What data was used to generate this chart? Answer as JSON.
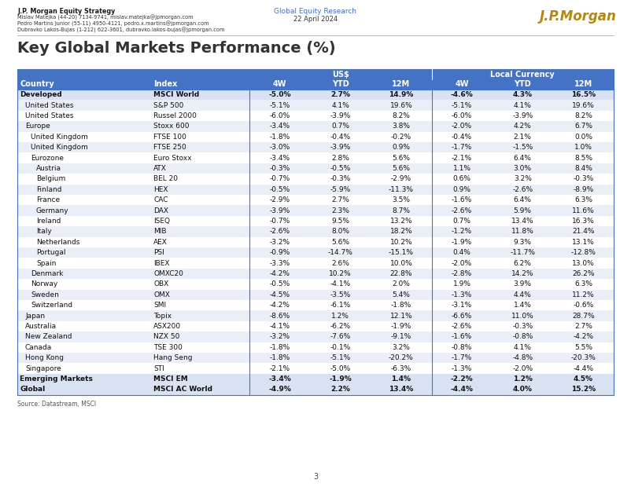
{
  "header_line1": "J.P. Morgan Equity Strategy",
  "header_line2": "Mislav Matejka (44-20) 7134-9741, mislav.matejka@jpmorgan.com",
  "header_line3": "Pedro Martins Junior (55-11) 4950-4121, pedro.x.martins@jpmorgan.com",
  "header_line4": "Dubravko Lakos-Bujas (1-212) 622-3601, dubravko.lakos-bujas@jpmorgan.com",
  "center_line1": "Global Equity Research",
  "center_line2": "22 April 2024",
  "title": "Key Global Markets Performance (%)",
  "page_number": "3",
  "source_text": "Source: Datastream, MSCI",
  "header_color": "#4472c4",
  "bold_row_bg": "#d9e2f3",
  "alt_row_color": "#e9eef7",
  "white_row_color": "#ffffff",
  "divider_color": "#4472c4",
  "columns": [
    "Country",
    "Index",
    "4W",
    "YTD",
    "12M",
    "4W",
    "YTD",
    "12M"
  ],
  "rows": [
    {
      "country": "Developed",
      "index": "MSCI World",
      "us_4w": "-5.0%",
      "us_ytd": "2.7%",
      "us_12m": "14.9%",
      "lc_4w": "-4.6%",
      "lc_ytd": "4.3%",
      "lc_12m": "16.5%",
      "bold": true,
      "indent": 0
    },
    {
      "country": "United States",
      "index": "S&P 500",
      "us_4w": "-5.1%",
      "us_ytd": "4.1%",
      "us_12m": "19.6%",
      "lc_4w": "-5.1%",
      "lc_ytd": "4.1%",
      "lc_12m": "19.6%",
      "bold": false,
      "indent": 1
    },
    {
      "country": "United States",
      "index": "Russel 2000",
      "us_4w": "-6.0%",
      "us_ytd": "-3.9%",
      "us_12m": "8.2%",
      "lc_4w": "-6.0%",
      "lc_ytd": "-3.9%",
      "lc_12m": "8.2%",
      "bold": false,
      "indent": 1
    },
    {
      "country": "Europe",
      "index": "Stoxx 600",
      "us_4w": "-3.4%",
      "us_ytd": "0.7%",
      "us_12m": "3.8%",
      "lc_4w": "-2.0%",
      "lc_ytd": "4.2%",
      "lc_12m": "6.7%",
      "bold": false,
      "indent": 1
    },
    {
      "country": "United Kingdom",
      "index": "FTSE 100",
      "us_4w": "-1.8%",
      "us_ytd": "-0.4%",
      "us_12m": "-0.2%",
      "lc_4w": "-0.4%",
      "lc_ytd": "2.1%",
      "lc_12m": "0.0%",
      "bold": false,
      "indent": 2
    },
    {
      "country": "United Kingdom",
      "index": "FTSE 250",
      "us_4w": "-3.0%",
      "us_ytd": "-3.9%",
      "us_12m": "0.9%",
      "lc_4w": "-1.7%",
      "lc_ytd": "-1.5%",
      "lc_12m": "1.0%",
      "bold": false,
      "indent": 2
    },
    {
      "country": "Eurozone",
      "index": "Euro Stoxx",
      "us_4w": "-3.4%",
      "us_ytd": "2.8%",
      "us_12m": "5.6%",
      "lc_4w": "-2.1%",
      "lc_ytd": "6.4%",
      "lc_12m": "8.5%",
      "bold": false,
      "indent": 2
    },
    {
      "country": "Austria",
      "index": "ATX",
      "us_4w": "-0.3%",
      "us_ytd": "-0.5%",
      "us_12m": "5.6%",
      "lc_4w": "1.1%",
      "lc_ytd": "3.0%",
      "lc_12m": "8.4%",
      "bold": false,
      "indent": 3
    },
    {
      "country": "Belgium",
      "index": "BEL 20",
      "us_4w": "-0.7%",
      "us_ytd": "-0.3%",
      "us_12m": "-2.9%",
      "lc_4w": "0.6%",
      "lc_ytd": "3.2%",
      "lc_12m": "-0.3%",
      "bold": false,
      "indent": 3
    },
    {
      "country": "Finland",
      "index": "HEX",
      "us_4w": "-0.5%",
      "us_ytd": "-5.9%",
      "us_12m": "-11.3%",
      "lc_4w": "0.9%",
      "lc_ytd": "-2.6%",
      "lc_12m": "-8.9%",
      "bold": false,
      "indent": 3
    },
    {
      "country": "France",
      "index": "CAC",
      "us_4w": "-2.9%",
      "us_ytd": "2.7%",
      "us_12m": "3.5%",
      "lc_4w": "-1.6%",
      "lc_ytd": "6.4%",
      "lc_12m": "6.3%",
      "bold": false,
      "indent": 3
    },
    {
      "country": "Germany",
      "index": "DAX",
      "us_4w": "-3.9%",
      "us_ytd": "2.3%",
      "us_12m": "8.7%",
      "lc_4w": "-2.6%",
      "lc_ytd": "5.9%",
      "lc_12m": "11.6%",
      "bold": false,
      "indent": 3
    },
    {
      "country": "Ireland",
      "index": "ISEQ",
      "us_4w": "-0.7%",
      "us_ytd": "9.5%",
      "us_12m": "13.2%",
      "lc_4w": "0.7%",
      "lc_ytd": "13.4%",
      "lc_12m": "16.3%",
      "bold": false,
      "indent": 3
    },
    {
      "country": "Italy",
      "index": "MIB",
      "us_4w": "-2.6%",
      "us_ytd": "8.0%",
      "us_12m": "18.2%",
      "lc_4w": "-1.2%",
      "lc_ytd": "11.8%",
      "lc_12m": "21.4%",
      "bold": false,
      "indent": 3
    },
    {
      "country": "Netherlands",
      "index": "AEX",
      "us_4w": "-3.2%",
      "us_ytd": "5.6%",
      "us_12m": "10.2%",
      "lc_4w": "-1.9%",
      "lc_ytd": "9.3%",
      "lc_12m": "13.1%",
      "bold": false,
      "indent": 3
    },
    {
      "country": "Portugal",
      "index": "PSI",
      "us_4w": "-0.9%",
      "us_ytd": "-14.7%",
      "us_12m": "-15.1%",
      "lc_4w": "0.4%",
      "lc_ytd": "-11.7%",
      "lc_12m": "-12.8%",
      "bold": false,
      "indent": 3
    },
    {
      "country": "Spain",
      "index": "IBEX",
      "us_4w": "-3.3%",
      "us_ytd": "2.6%",
      "us_12m": "10.0%",
      "lc_4w": "-2.0%",
      "lc_ytd": "6.2%",
      "lc_12m": "13.0%",
      "bold": false,
      "indent": 3
    },
    {
      "country": "Denmark",
      "index": "OMXC20",
      "us_4w": "-4.2%",
      "us_ytd": "10.2%",
      "us_12m": "22.8%",
      "lc_4w": "-2.8%",
      "lc_ytd": "14.2%",
      "lc_12m": "26.2%",
      "bold": false,
      "indent": 2
    },
    {
      "country": "Norway",
      "index": "OBX",
      "us_4w": "-0.5%",
      "us_ytd": "-4.1%",
      "us_12m": "2.0%",
      "lc_4w": "1.9%",
      "lc_ytd": "3.9%",
      "lc_12m": "6.3%",
      "bold": false,
      "indent": 2
    },
    {
      "country": "Sweden",
      "index": "OMX",
      "us_4w": "-4.5%",
      "us_ytd": "-3.5%",
      "us_12m": "5.4%",
      "lc_4w": "-1.3%",
      "lc_ytd": "4.4%",
      "lc_12m": "11.2%",
      "bold": false,
      "indent": 2
    },
    {
      "country": "Switzerland",
      "index": "SMI",
      "us_4w": "-4.2%",
      "us_ytd": "-6.1%",
      "us_12m": "-1.8%",
      "lc_4w": "-3.1%",
      "lc_ytd": "1.4%",
      "lc_12m": "-0.6%",
      "bold": false,
      "indent": 2
    },
    {
      "country": "Japan",
      "index": "Topix",
      "us_4w": "-8.6%",
      "us_ytd": "1.2%",
      "us_12m": "12.1%",
      "lc_4w": "-6.6%",
      "lc_ytd": "11.0%",
      "lc_12m": "28.7%",
      "bold": false,
      "indent": 1
    },
    {
      "country": "Australia",
      "index": "ASX200",
      "us_4w": "-4.1%",
      "us_ytd": "-6.2%",
      "us_12m": "-1.9%",
      "lc_4w": "-2.6%",
      "lc_ytd": "-0.3%",
      "lc_12m": "2.7%",
      "bold": false,
      "indent": 1
    },
    {
      "country": "New Zealand",
      "index": "NZX 50",
      "us_4w": "-3.2%",
      "us_ytd": "-7.6%",
      "us_12m": "-9.1%",
      "lc_4w": "-1.6%",
      "lc_ytd": "-0.8%",
      "lc_12m": "-4.2%",
      "bold": false,
      "indent": 1
    },
    {
      "country": "Canada",
      "index": "TSE 300",
      "us_4w": "-1.8%",
      "us_ytd": "-0.1%",
      "us_12m": "3.2%",
      "lc_4w": "-0.8%",
      "lc_ytd": "4.1%",
      "lc_12m": "5.5%",
      "bold": false,
      "indent": 1
    },
    {
      "country": "Hong Kong",
      "index": "Hang Seng",
      "us_4w": "-1.8%",
      "us_ytd": "-5.1%",
      "us_12m": "-20.2%",
      "lc_4w": "-1.7%",
      "lc_ytd": "-4.8%",
      "lc_12m": "-20.3%",
      "bold": false,
      "indent": 1
    },
    {
      "country": "Singapore",
      "index": "STI",
      "us_4w": "-2.1%",
      "us_ytd": "-5.0%",
      "us_12m": "-6.3%",
      "lc_4w": "-1.3%",
      "lc_ytd": "-2.0%",
      "lc_12m": "-4.4%",
      "bold": false,
      "indent": 1
    },
    {
      "country": "Emerging Markets",
      "index": "MSCI EM",
      "us_4w": "-3.4%",
      "us_ytd": "-1.9%",
      "us_12m": "1.4%",
      "lc_4w": "-2.2%",
      "lc_ytd": "1.2%",
      "lc_12m": "4.5%",
      "bold": true,
      "indent": 0
    },
    {
      "country": "Global",
      "index": "MSCI AC World",
      "us_4w": "-4.9%",
      "us_ytd": "2.2%",
      "us_12m": "13.4%",
      "lc_4w": "-4.4%",
      "lc_ytd": "4.0%",
      "lc_12m": "15.2%",
      "bold": true,
      "indent": 0
    }
  ]
}
